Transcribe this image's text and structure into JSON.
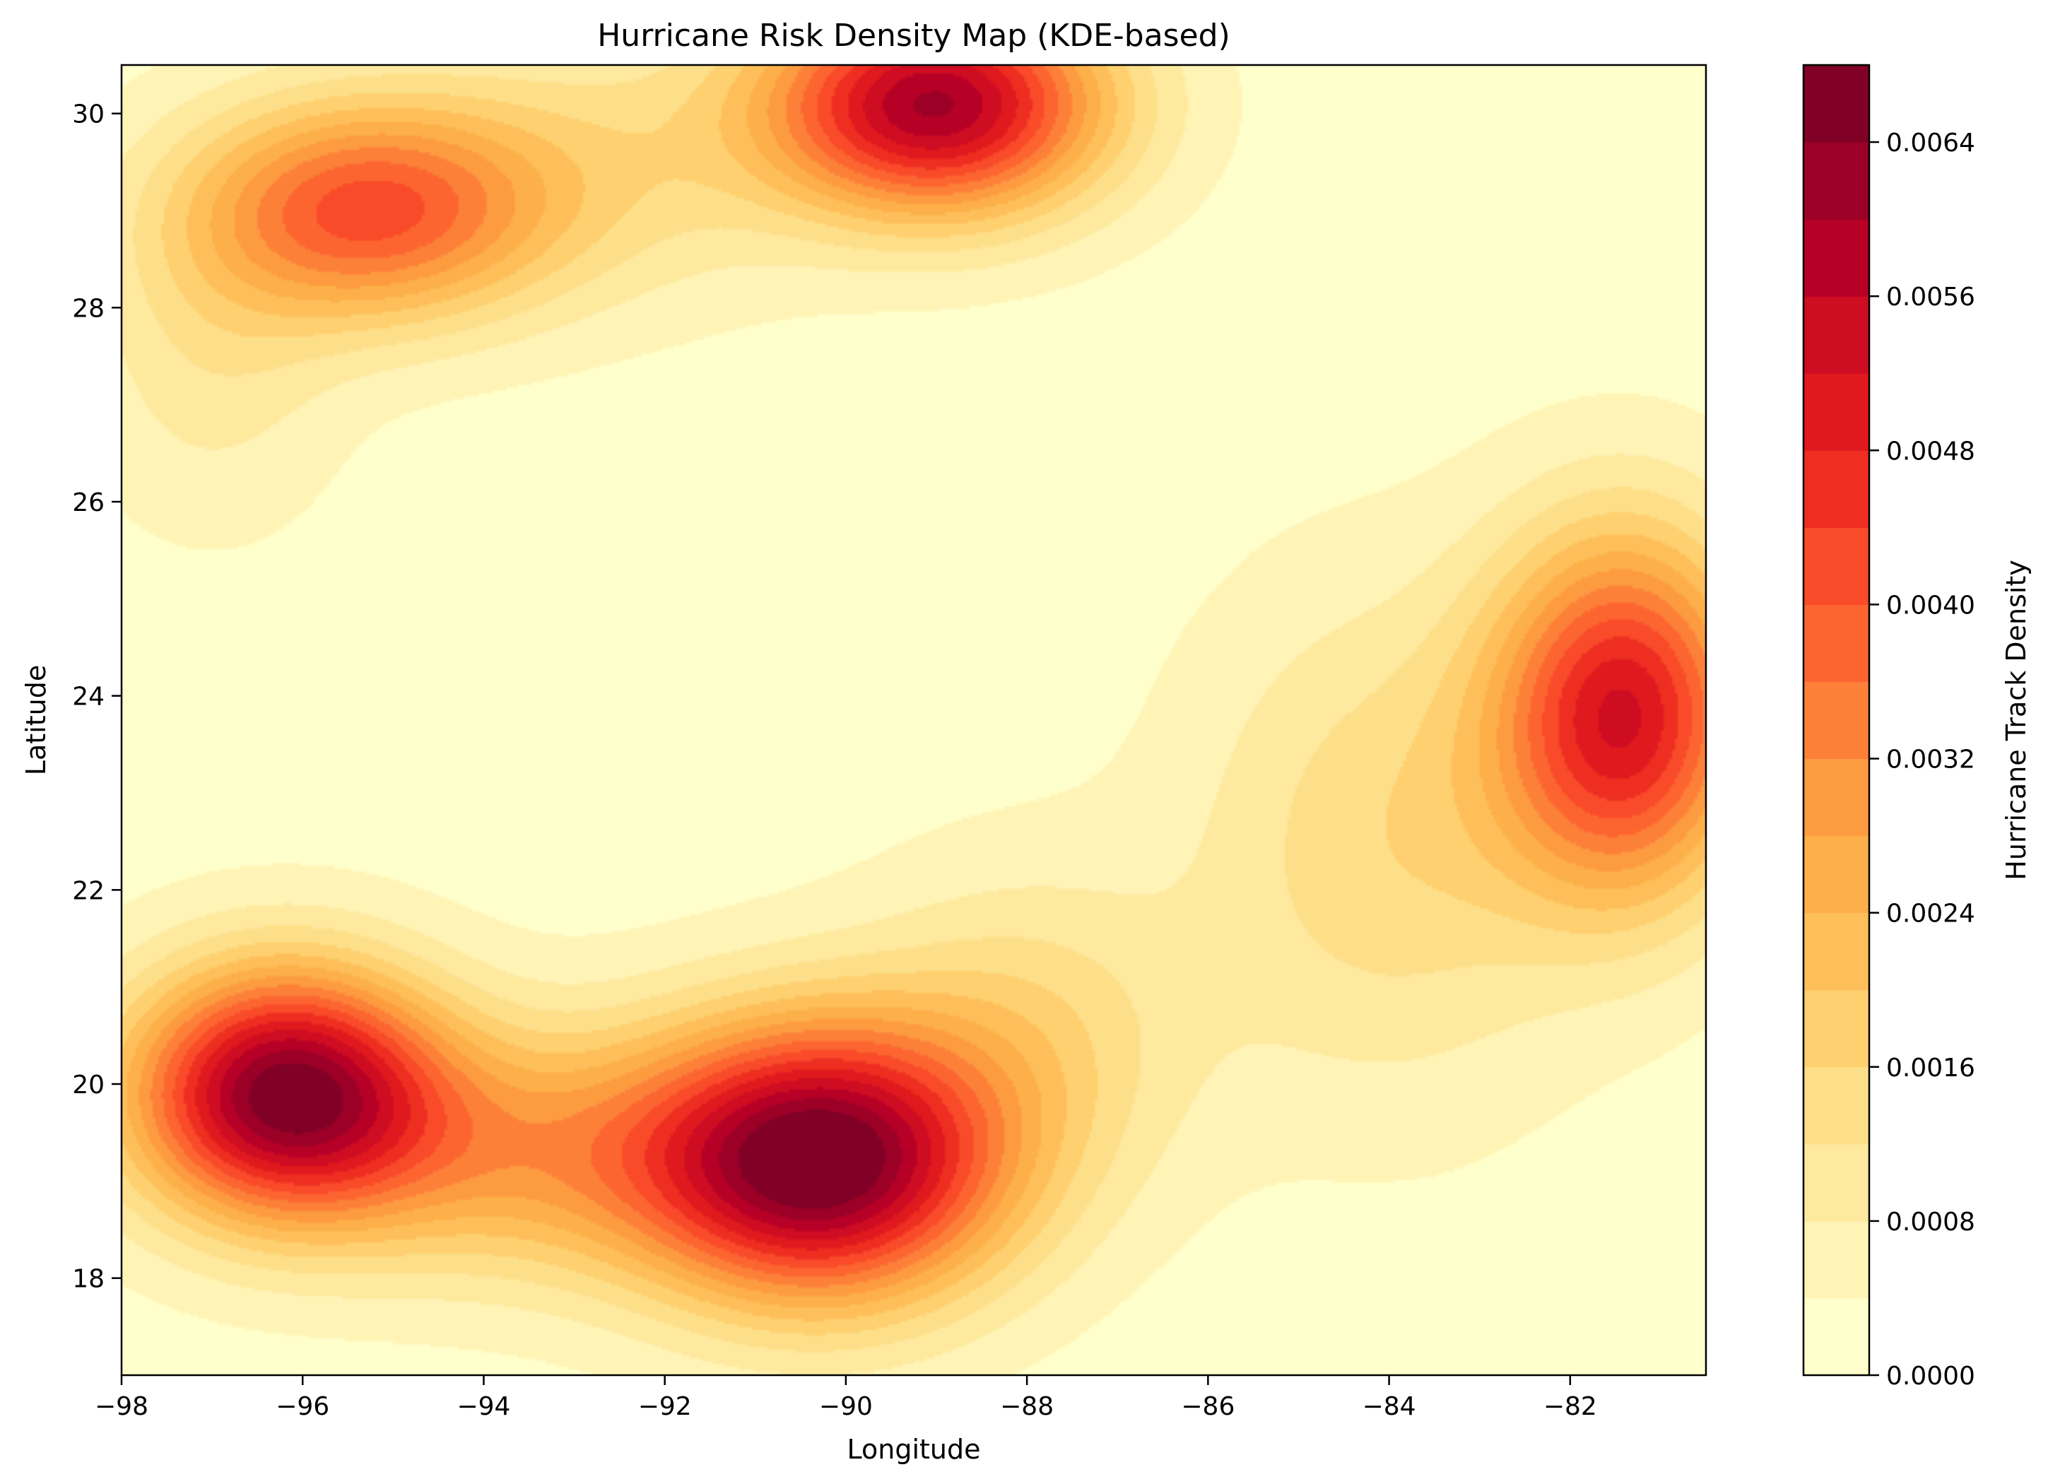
{
  "chart_data": {
    "type": "heatmap",
    "subtype": "filled-contour",
    "title": "Hurricane Risk Density Map (KDE-based)",
    "xlabel": "Longitude",
    "ylabel": "Latitude",
    "xlim": [
      -98,
      -80.5
    ],
    "ylim": [
      17,
      30.5
    ],
    "x_ticks": [
      -98,
      -96,
      -94,
      -92,
      -90,
      -88,
      -86,
      -84,
      -82
    ],
    "x_tick_labels": [
      "−98",
      "−96",
      "−94",
      "−92",
      "−90",
      "−88",
      "−86",
      "−84",
      "−82"
    ],
    "y_ticks": [
      18,
      20,
      22,
      24,
      26,
      28,
      30
    ],
    "y_tick_labels": [
      "18",
      "20",
      "22",
      "24",
      "26",
      "28",
      "30"
    ],
    "colorbar": {
      "label": "Hurricane Track Density",
      "range": [
        0,
        0.0068
      ],
      "level_step": 0.0004,
      "ticks": [
        0,
        0.0008,
        0.0016,
        0.0024,
        0.0032,
        0.004,
        0.0048,
        0.0056,
        0.0064
      ],
      "tick_labels": [
        "0.0000",
        "0.0008",
        "0.0016",
        "0.0024",
        "0.0032",
        "0.0040",
        "0.0048",
        "0.0056",
        "0.0064"
      ],
      "colors": [
        "#ffffcc",
        "#fff4b6",
        "#ffe99f",
        "#fedf89",
        "#fed06f",
        "#febf5a",
        "#fdaf49",
        "#fd9b41",
        "#fd8039",
        "#fc6530",
        "#f94a29",
        "#ed2e21",
        "#e0191e",
        "#ce0c22",
        "#b60026",
        "#9c0026",
        "#800026"
      ]
    },
    "colormap": "YlOrRd",
    "grid": false,
    "density_peaks": [
      {
        "lon": -96.2,
        "lat": 19.9,
        "density": 0.00625
      },
      {
        "lon": -90.3,
        "lat": 19.2,
        "density": 0.0066
      },
      {
        "lon": -89.0,
        "lat": 30.1,
        "density": 0.0058
      },
      {
        "lon": -81.4,
        "lat": 23.8,
        "density": 0.0049
      },
      {
        "lon": -95.3,
        "lat": 29.0,
        "density": 0.0038
      }
    ],
    "density_lows": [
      {
        "lon": -91.5,
        "lat": 25.0,
        "density": 0.0003
      },
      {
        "lon": -81.5,
        "lat": 30.3,
        "density": 0.0004
      },
      {
        "lon": -83.0,
        "lat": 17.3,
        "density": 0.0006
      },
      {
        "lon": -86.0,
        "lat": 26.5,
        "density": 0.0009
      }
    ]
  }
}
